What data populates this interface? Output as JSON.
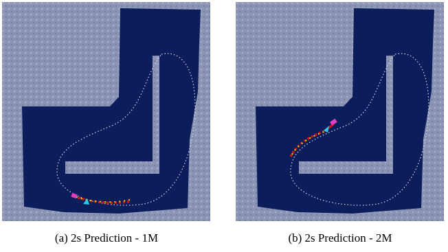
{
  "panels": [
    {
      "caption": "(a) 2s Prediction - 1M"
    },
    {
      "caption": "(b) 2s Prediction - 2M"
    }
  ]
}
